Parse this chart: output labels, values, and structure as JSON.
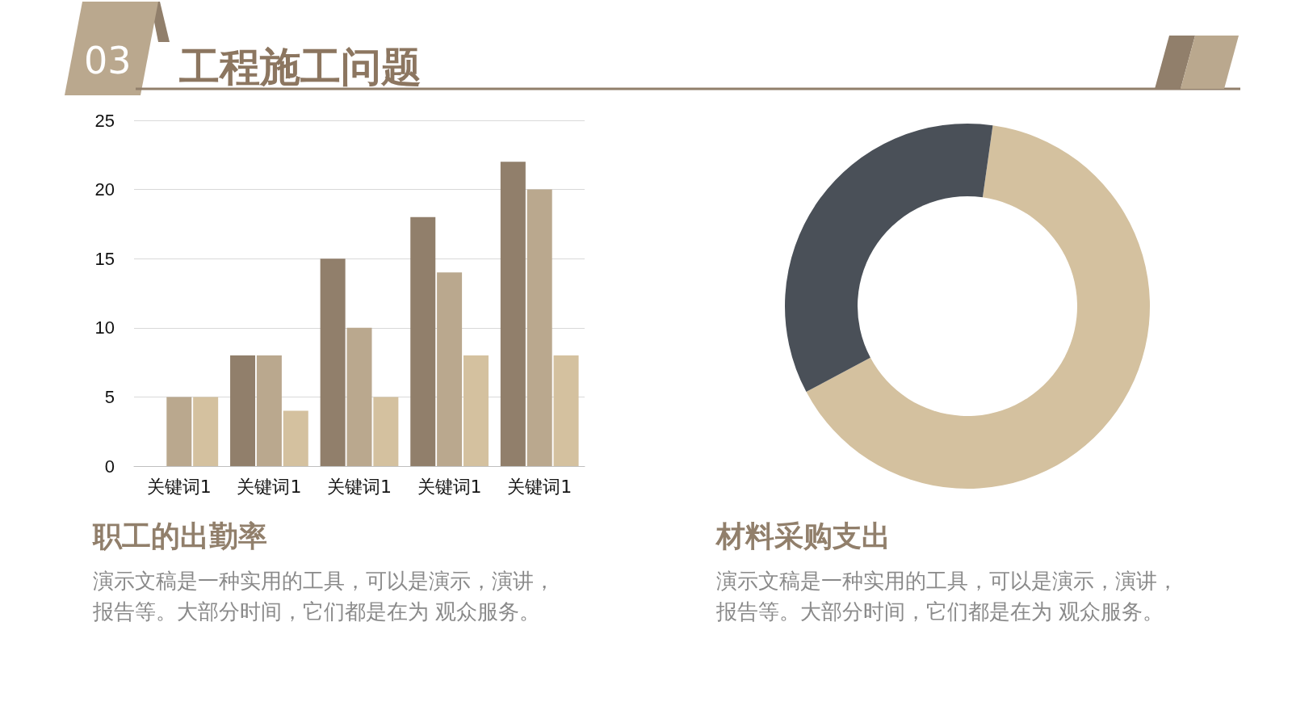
{
  "chart_data": [
    {
      "type": "other",
      "title": "工程施工问题",
      "annotations": [
        "03"
      ]
    },
    {
      "type": "bar",
      "title": "职工的出勤率",
      "categories": [
        "关键词1",
        "关键词1",
        "关键词1",
        "关键词1",
        "关键词1"
      ],
      "series": [
        {
          "color": "#917f6b",
          "values": [
            0,
            8,
            15,
            18,
            22
          ]
        },
        {
          "color": "#baa88e",
          "values": [
            5,
            8,
            10,
            14,
            20
          ]
        },
        {
          "color": "#d4c19f",
          "values": [
            5,
            4,
            5,
            8,
            8
          ]
        }
      ],
      "ylim": [
        0,
        25
      ],
      "yticks": [
        0,
        5,
        10,
        15,
        20,
        25
      ],
      "grid": "y",
      "annotations": [
        "演示文稿是一种实用的工具，可以是演示，演讲，报告等。大部分时间，它们都是在为 观众服务。"
      ]
    },
    {
      "type": "donut",
      "title": "材料采购支出",
      "categories": [
        null,
        null
      ],
      "values": [
        65,
        35
      ],
      "colors": [
        "#d4c19f",
        "#4a5058"
      ],
      "annotations": [
        "演示文稿是一种实用的工具，可以是演示，演讲，报告等。大部分时间，它们都是在为 观众服务。"
      ]
    }
  ]
}
